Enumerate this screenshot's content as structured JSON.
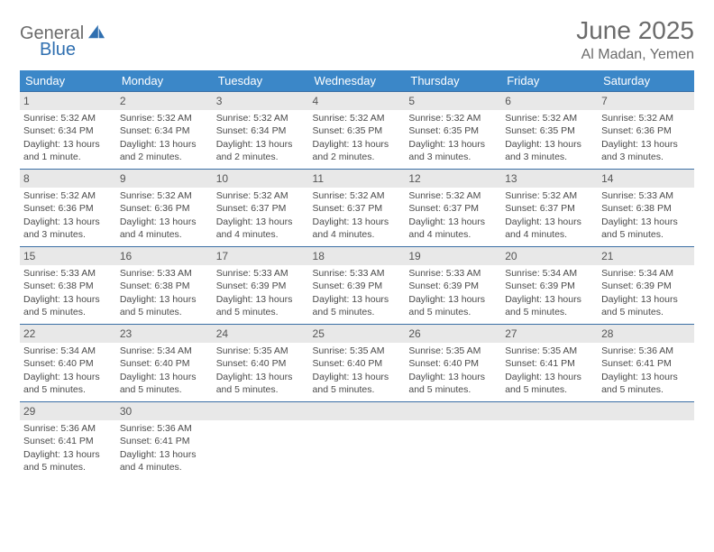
{
  "logo": {
    "word1": "General",
    "word2": "Blue"
  },
  "title": {
    "month": "June 2025",
    "location": "Al Madan, Yemen"
  },
  "colors": {
    "header_bg": "#3b87c8",
    "header_text": "#ffffff",
    "row_border": "#3b6fa5",
    "daynum_bg": "#e8e8e8",
    "body_text": "#4a4a4a",
    "title_text": "#6b6b6b",
    "logo_blue": "#2f6fb0"
  },
  "calendar": {
    "weekdays": [
      "Sunday",
      "Monday",
      "Tuesday",
      "Wednesday",
      "Thursday",
      "Friday",
      "Saturday"
    ],
    "weeks": [
      [
        {
          "n": "1",
          "sr": "5:32 AM",
          "ss": "6:34 PM",
          "dl": "13 hours and 1 minute."
        },
        {
          "n": "2",
          "sr": "5:32 AM",
          "ss": "6:34 PM",
          "dl": "13 hours and 2 minutes."
        },
        {
          "n": "3",
          "sr": "5:32 AM",
          "ss": "6:34 PM",
          "dl": "13 hours and 2 minutes."
        },
        {
          "n": "4",
          "sr": "5:32 AM",
          "ss": "6:35 PM",
          "dl": "13 hours and 2 minutes."
        },
        {
          "n": "5",
          "sr": "5:32 AM",
          "ss": "6:35 PM",
          "dl": "13 hours and 3 minutes."
        },
        {
          "n": "6",
          "sr": "5:32 AM",
          "ss": "6:35 PM",
          "dl": "13 hours and 3 minutes."
        },
        {
          "n": "7",
          "sr": "5:32 AM",
          "ss": "6:36 PM",
          "dl": "13 hours and 3 minutes."
        }
      ],
      [
        {
          "n": "8",
          "sr": "5:32 AM",
          "ss": "6:36 PM",
          "dl": "13 hours and 3 minutes."
        },
        {
          "n": "9",
          "sr": "5:32 AM",
          "ss": "6:36 PM",
          "dl": "13 hours and 4 minutes."
        },
        {
          "n": "10",
          "sr": "5:32 AM",
          "ss": "6:37 PM",
          "dl": "13 hours and 4 minutes."
        },
        {
          "n": "11",
          "sr": "5:32 AM",
          "ss": "6:37 PM",
          "dl": "13 hours and 4 minutes."
        },
        {
          "n": "12",
          "sr": "5:32 AM",
          "ss": "6:37 PM",
          "dl": "13 hours and 4 minutes."
        },
        {
          "n": "13",
          "sr": "5:32 AM",
          "ss": "6:37 PM",
          "dl": "13 hours and 4 minutes."
        },
        {
          "n": "14",
          "sr": "5:33 AM",
          "ss": "6:38 PM",
          "dl": "13 hours and 5 minutes."
        }
      ],
      [
        {
          "n": "15",
          "sr": "5:33 AM",
          "ss": "6:38 PM",
          "dl": "13 hours and 5 minutes."
        },
        {
          "n": "16",
          "sr": "5:33 AM",
          "ss": "6:38 PM",
          "dl": "13 hours and 5 minutes."
        },
        {
          "n": "17",
          "sr": "5:33 AM",
          "ss": "6:39 PM",
          "dl": "13 hours and 5 minutes."
        },
        {
          "n": "18",
          "sr": "5:33 AM",
          "ss": "6:39 PM",
          "dl": "13 hours and 5 minutes."
        },
        {
          "n": "19",
          "sr": "5:33 AM",
          "ss": "6:39 PM",
          "dl": "13 hours and 5 minutes."
        },
        {
          "n": "20",
          "sr": "5:34 AM",
          "ss": "6:39 PM",
          "dl": "13 hours and 5 minutes."
        },
        {
          "n": "21",
          "sr": "5:34 AM",
          "ss": "6:39 PM",
          "dl": "13 hours and 5 minutes."
        }
      ],
      [
        {
          "n": "22",
          "sr": "5:34 AM",
          "ss": "6:40 PM",
          "dl": "13 hours and 5 minutes."
        },
        {
          "n": "23",
          "sr": "5:34 AM",
          "ss": "6:40 PM",
          "dl": "13 hours and 5 minutes."
        },
        {
          "n": "24",
          "sr": "5:35 AM",
          "ss": "6:40 PM",
          "dl": "13 hours and 5 minutes."
        },
        {
          "n": "25",
          "sr": "5:35 AM",
          "ss": "6:40 PM",
          "dl": "13 hours and 5 minutes."
        },
        {
          "n": "26",
          "sr": "5:35 AM",
          "ss": "6:40 PM",
          "dl": "13 hours and 5 minutes."
        },
        {
          "n": "27",
          "sr": "5:35 AM",
          "ss": "6:41 PM",
          "dl": "13 hours and 5 minutes."
        },
        {
          "n": "28",
          "sr": "5:36 AM",
          "ss": "6:41 PM",
          "dl": "13 hours and 5 minutes."
        }
      ],
      [
        {
          "n": "29",
          "sr": "5:36 AM",
          "ss": "6:41 PM",
          "dl": "13 hours and 5 minutes."
        },
        {
          "n": "30",
          "sr": "5:36 AM",
          "ss": "6:41 PM",
          "dl": "13 hours and 4 minutes."
        },
        {
          "n": "",
          "sr": "",
          "ss": "",
          "dl": ""
        },
        {
          "n": "",
          "sr": "",
          "ss": "",
          "dl": ""
        },
        {
          "n": "",
          "sr": "",
          "ss": "",
          "dl": ""
        },
        {
          "n": "",
          "sr": "",
          "ss": "",
          "dl": ""
        },
        {
          "n": "",
          "sr": "",
          "ss": "",
          "dl": ""
        }
      ]
    ],
    "labels": {
      "sunrise": "Sunrise:",
      "sunset": "Sunset:",
      "daylight": "Daylight:"
    }
  }
}
